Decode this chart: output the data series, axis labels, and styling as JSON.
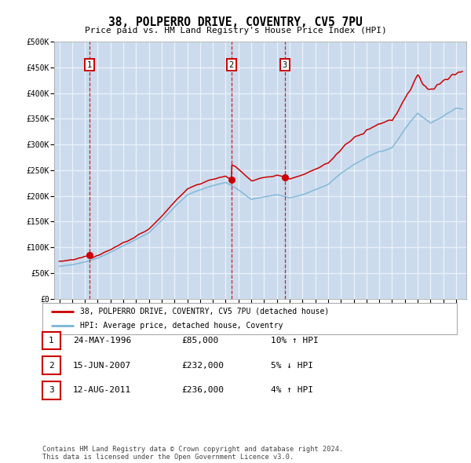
{
  "title": "38, POLPERRO DRIVE, COVENTRY, CV5 7PU",
  "subtitle": "Price paid vs. HM Land Registry's House Price Index (HPI)",
  "ylim": [
    0,
    500000
  ],
  "xlim_start": 1993.6,
  "xlim_end": 2025.8,
  "background_color": "#dce9f5",
  "hatch_color": "#b8cce4",
  "grid_color": "#ffffff",
  "sale_dates": [
    1996.38,
    2007.45,
    2011.62
  ],
  "sale_prices": [
    85000,
    232000,
    236000
  ],
  "sale_labels": [
    "1",
    "2",
    "3"
  ],
  "legend_line1": "38, POLPERRO DRIVE, COVENTRY, CV5 7PU (detached house)",
  "legend_line2": "HPI: Average price, detached house, Coventry",
  "table_data": [
    [
      "1",
      "24-MAY-1996",
      "£85,000",
      "10% ↑ HPI"
    ],
    [
      "2",
      "15-JUN-2007",
      "£232,000",
      "5% ↓ HPI"
    ],
    [
      "3",
      "12-AUG-2011",
      "£236,000",
      "4% ↑ HPI"
    ]
  ],
  "footnote": "Contains HM Land Registry data © Crown copyright and database right 2024.\nThis data is licensed under the Open Government Licence v3.0.",
  "hpi_color": "#7ab4d8",
  "price_color": "#cc0000",
  "marker_color": "#cc0000",
  "years_hpi": [
    1994,
    1995,
    1996,
    1997,
    1998,
    1999,
    2000,
    2001,
    2002,
    2003,
    2004,
    2005,
    2006,
    2007,
    2008,
    2009,
    2010,
    2011,
    2012,
    2013,
    2014,
    2015,
    2016,
    2017,
    2018,
    2019,
    2020,
    2021,
    2022,
    2023,
    2024,
    2025
  ],
  "hpi_vals": [
    63000,
    66000,
    71000,
    79000,
    90000,
    103000,
    115000,
    128000,
    152000,
    178000,
    202000,
    212000,
    220000,
    226000,
    212000,
    193000,
    198000,
    202000,
    196000,
    202000,
    212000,
    222000,
    244000,
    261000,
    274000,
    286000,
    292000,
    330000,
    362000,
    342000,
    355000,
    370000
  ]
}
